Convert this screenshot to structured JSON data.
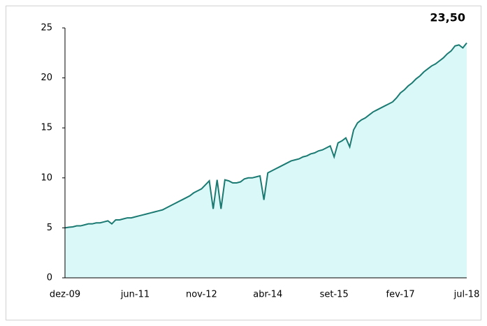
{
  "chart_data": {
    "type": "area",
    "annotation": "23,50",
    "categories": [
      "dez-09",
      null,
      null,
      null,
      null,
      null,
      null,
      null,
      null,
      null,
      null,
      null,
      null,
      null,
      null,
      null,
      null,
      null,
      "jun-11",
      null,
      null,
      null,
      null,
      null,
      null,
      null,
      null,
      null,
      null,
      null,
      null,
      null,
      null,
      null,
      null,
      "nov-12",
      null,
      null,
      null,
      null,
      null,
      null,
      null,
      null,
      null,
      null,
      null,
      null,
      null,
      null,
      null,
      null,
      "abr-14",
      null,
      null,
      null,
      null,
      null,
      null,
      null,
      null,
      null,
      null,
      null,
      null,
      null,
      null,
      null,
      null,
      "set-15",
      null,
      null,
      null,
      null,
      null,
      null,
      null,
      null,
      null,
      null,
      null,
      null,
      null,
      null,
      null,
      null,
      "fev-17",
      null,
      null,
      null,
      null,
      null,
      null,
      null,
      null,
      null,
      null,
      null,
      null,
      null,
      null,
      null,
      null,
      "jul-18"
    ],
    "values": [
      5.0,
      5.06,
      5.1,
      5.2,
      5.2,
      5.3,
      5.4,
      5.4,
      5.5,
      5.5,
      5.6,
      5.7,
      5.4,
      5.8,
      5.8,
      5.9,
      6.0,
      6.0,
      6.1,
      6.2,
      6.3,
      6.4,
      6.5,
      6.6,
      6.7,
      6.8,
      7.0,
      7.2,
      7.4,
      7.6,
      7.8,
      8.0,
      8.2,
      8.5,
      8.7,
      8.9,
      9.3,
      9.7,
      6.9,
      9.8,
      6.9,
      9.8,
      9.7,
      9.5,
      9.5,
      9.6,
      9.9,
      10.0,
      10.0,
      10.1,
      10.2,
      7.8,
      10.5,
      10.7,
      10.9,
      11.1,
      11.3,
      11.5,
      11.7,
      11.8,
      11.9,
      12.1,
      12.2,
      12.4,
      12.5,
      12.7,
      12.8,
      13.0,
      13.2,
      12.1,
      13.5,
      13.7,
      14.0,
      13.1,
      14.8,
      15.5,
      15.8,
      16.0,
      16.3,
      16.6,
      16.8,
      17.0,
      17.2,
      17.4,
      17.6,
      18.0,
      18.5,
      18.8,
      19.2,
      19.5,
      19.9,
      20.2,
      20.6,
      20.9,
      21.2,
      21.4,
      21.7,
      22.0,
      22.4,
      22.7,
      23.2,
      23.3,
      23.0,
      23.5
    ],
    "color": "#1b7a72",
    "fill": "#dbf8f8",
    "ylim": [
      0,
      25
    ],
    "yticks": [
      0,
      5,
      10,
      15,
      20,
      25
    ],
    "grid": false
  }
}
